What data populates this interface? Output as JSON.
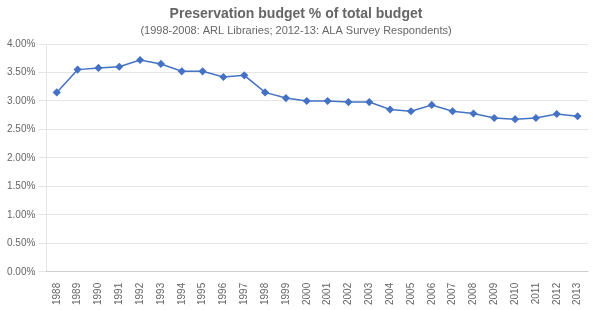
{
  "chart_data": {
    "type": "line",
    "title": "Preservation budget % of total budget",
    "subtitle": "(1998-2008: ARL Libraries; 2012-13: ALA Survey Respondents)",
    "x": [
      1988,
      1989,
      1990,
      1991,
      1992,
      1993,
      1994,
      1995,
      1996,
      1997,
      1998,
      1999,
      2000,
      2001,
      2002,
      2003,
      2004,
      2005,
      2006,
      2007,
      2008,
      2009,
      2010,
      2011,
      2012,
      2013
    ],
    "values": [
      0.0315,
      0.0355,
      0.0358,
      0.036,
      0.0372,
      0.0365,
      0.0352,
      0.0352,
      0.0342,
      0.0345,
      0.0315,
      0.0305,
      0.03,
      0.03,
      0.0298,
      0.0298,
      0.0285,
      0.0282,
      0.0293,
      0.0282,
      0.0278,
      0.027,
      0.0268,
      0.027,
      0.0277,
      0.0273
    ],
    "color": "#4472C4",
    "marker": "diamond",
    "xlim": [
      1987.5,
      2013.5
    ],
    "xticks": [
      1988,
      1989,
      1990,
      1991,
      1992,
      1993,
      1994,
      1995,
      1996,
      1997,
      1998,
      1999,
      2000,
      2001,
      2002,
      2003,
      2004,
      2005,
      2006,
      2007,
      2008,
      2009,
      2010,
      2011,
      2012,
      2013
    ],
    "ylim": [
      0.0,
      0.04
    ],
    "yticks": [
      {
        "value": 0.0,
        "label": "0.00%"
      },
      {
        "value": 0.005,
        "label": "0.50%"
      },
      {
        "value": 0.01,
        "label": "1.00%"
      },
      {
        "value": 0.015,
        "label": "1.50%"
      },
      {
        "value": 0.02,
        "label": "2.00%"
      },
      {
        "value": 0.025,
        "label": "2.50%"
      },
      {
        "value": 0.03,
        "label": "3.00%"
      },
      {
        "value": 0.035,
        "label": "3.50%"
      },
      {
        "value": 0.04,
        "label": "4.00%"
      }
    ],
    "grid": "y"
  }
}
